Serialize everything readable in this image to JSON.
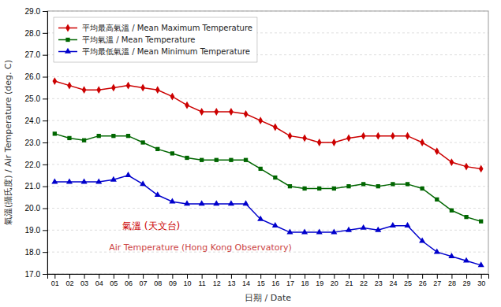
{
  "chart_data": {
    "type": "line",
    "x_label": "日期 / Date",
    "y_label": "氣溫(攝氏度) / Air Temperature (deg. C)",
    "annotations": [
      "氣溫 (天文台)",
      "Air Temperature (Hong Kong Observatory)"
    ],
    "x": [
      1,
      2,
      3,
      4,
      5,
      6,
      7,
      8,
      9,
      10,
      11,
      12,
      13,
      14,
      15,
      16,
      17,
      18,
      19,
      20,
      21,
      22,
      23,
      24,
      25,
      26,
      27,
      28,
      29,
      30
    ],
    "xlim": [
      0.5,
      30.5
    ],
    "xticks": [
      {
        "value": 1,
        "label": "01"
      },
      {
        "value": 2,
        "label": "02"
      },
      {
        "value": 3,
        "label": "03"
      },
      {
        "value": 4,
        "label": "04"
      },
      {
        "value": 5,
        "label": "05"
      },
      {
        "value": 6,
        "label": "06"
      },
      {
        "value": 7,
        "label": "07"
      },
      {
        "value": 8,
        "label": "08"
      },
      {
        "value": 9,
        "label": "09"
      },
      {
        "value": 10,
        "label": "10"
      },
      {
        "value": 11,
        "label": "11"
      },
      {
        "value": 12,
        "label": "12"
      },
      {
        "value": 13,
        "label": "13"
      },
      {
        "value": 14,
        "label": "14"
      },
      {
        "value": 15,
        "label": "15"
      },
      {
        "value": 16,
        "label": "16"
      },
      {
        "value": 17,
        "label": "17"
      },
      {
        "value": 18,
        "label": "18"
      },
      {
        "value": 19,
        "label": "19"
      },
      {
        "value": 20,
        "label": "20"
      },
      {
        "value": 21,
        "label": "21"
      },
      {
        "value": 22,
        "label": "22"
      },
      {
        "value": 23,
        "label": "23"
      },
      {
        "value": 24,
        "label": "24"
      },
      {
        "value": 25,
        "label": "25"
      },
      {
        "value": 26,
        "label": "26"
      },
      {
        "value": 27,
        "label": "27"
      },
      {
        "value": 28,
        "label": "28"
      },
      {
        "value": 29,
        "label": "29"
      },
      {
        "value": 30,
        "label": "30"
      }
    ],
    "ylim": [
      17.0,
      29.0
    ],
    "yticks": [
      {
        "value": 17,
        "label": "17.0"
      },
      {
        "value": 18,
        "label": "18.0"
      },
      {
        "value": 19,
        "label": "19.0"
      },
      {
        "value": 20,
        "label": "20.0"
      },
      {
        "value": 21,
        "label": "21.0"
      },
      {
        "value": 22,
        "label": "22.0"
      },
      {
        "value": 23,
        "label": "23.0"
      },
      {
        "value": 24,
        "label": "24.0"
      },
      {
        "value": 25,
        "label": "25.0"
      },
      {
        "value": 26,
        "label": "26.0"
      },
      {
        "value": 27,
        "label": "27.0"
      },
      {
        "value": 28,
        "label": "28.0"
      },
      {
        "value": 29,
        "label": "29.0"
      }
    ],
    "grid": true,
    "legend": "upper-left",
    "series": [
      {
        "name": "平均最高氣溫 / Mean Maximum Temperature",
        "color": "#cc0000",
        "marker": "diamond",
        "values": [
          25.8,
          25.6,
          25.4,
          25.4,
          25.5,
          25.6,
          25.5,
          25.4,
          25.1,
          24.7,
          24.4,
          24.4,
          24.4,
          24.3,
          24.0,
          23.7,
          23.3,
          23.2,
          23.0,
          23.0,
          23.2,
          23.3,
          23.3,
          23.3,
          23.3,
          23.0,
          22.6,
          22.1,
          21.9,
          21.8
        ]
      },
      {
        "name": "平均氣溫 / Mean Temperature",
        "color": "#006600",
        "marker": "square",
        "values": [
          23.4,
          23.2,
          23.1,
          23.3,
          23.3,
          23.3,
          23.0,
          22.7,
          22.5,
          22.3,
          22.2,
          22.2,
          22.2,
          22.2,
          21.8,
          21.4,
          21.0,
          20.9,
          20.9,
          20.9,
          21.0,
          21.1,
          21.0,
          21.1,
          21.1,
          20.9,
          20.4,
          19.9,
          19.6,
          19.4
        ]
      },
      {
        "name": "平均最低氣溫 / Mean Minimum Temperature",
        "color": "#0000cc",
        "marker": "triangle",
        "values": [
          21.2,
          21.2,
          21.2,
          21.2,
          21.3,
          21.5,
          21.1,
          20.6,
          20.3,
          20.2,
          20.2,
          20.2,
          20.2,
          20.2,
          19.5,
          19.2,
          18.9,
          18.9,
          18.9,
          18.9,
          19.0,
          19.1,
          19.0,
          19.2,
          19.2,
          18.5,
          18.0,
          17.8,
          17.6,
          17.4
        ]
      }
    ]
  }
}
